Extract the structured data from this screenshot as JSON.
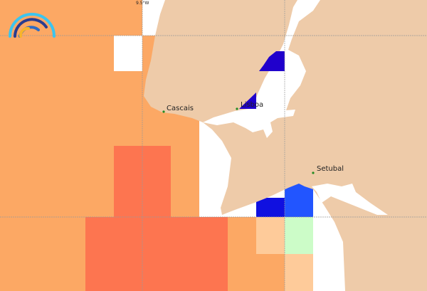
{
  "map": {
    "grid_label": "9.5°W",
    "colors": {
      "land": "#eecba9",
      "sea": "#ffffff",
      "orange": "#fca864",
      "red": "#fd7550",
      "light_orange": "#fecb9a",
      "green": "#ccfcc8",
      "dark_blue": "#2000cc",
      "blue": "#1010e0",
      "light_blue": "#2255ff",
      "grid": "#999999",
      "city_dot": "#228b22"
    },
    "cities": [
      {
        "name": "Cascais"
      },
      {
        "name": "Lisboa"
      },
      {
        "name": "Setubal"
      }
    ],
    "logo": "arc-logo"
  }
}
